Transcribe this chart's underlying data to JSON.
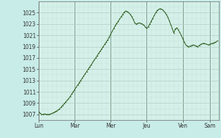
{
  "background_color": "#c8ece8",
  "plot_bg_color": "#d4f0e8",
  "line_color": "#2a5a1a",
  "marker_color": "#2a5a1a",
  "ylim": [
    1006,
    1027
  ],
  "yticks": [
    1007,
    1009,
    1011,
    1013,
    1015,
    1017,
    1019,
    1021,
    1023,
    1025
  ],
  "xlabel_days": [
    "Lun",
    "Mar",
    "Mer",
    "Jeu",
    "Ven",
    "Sam"
  ],
  "day_positions": [
    0,
    24,
    48,
    72,
    96,
    114
  ],
  "xlim": [
    0,
    120
  ],
  "grid_major_color": "#b0ccc4",
  "grid_minor_color": "#c4ddd6",
  "day_line_color": "#7a9a8a",
  "x_values": [
    0,
    1,
    2,
    3,
    4,
    5,
    6,
    7,
    8,
    9,
    10,
    11,
    12,
    13,
    14,
    15,
    16,
    17,
    18,
    19,
    20,
    21,
    22,
    23,
    24,
    25,
    26,
    27,
    28,
    29,
    30,
    31,
    32,
    33,
    34,
    35,
    36,
    37,
    38,
    39,
    40,
    41,
    42,
    43,
    44,
    45,
    46,
    47,
    48,
    49,
    50,
    51,
    52,
    53,
    54,
    55,
    56,
    57,
    58,
    59,
    60,
    61,
    62,
    63,
    64,
    65,
    66,
    67,
    68,
    69,
    70,
    71,
    72,
    73,
    74,
    75,
    76,
    77,
    78,
    79,
    80,
    81,
    82,
    83,
    84,
    85,
    86,
    87,
    88,
    89,
    90,
    91,
    92,
    93,
    94,
    95,
    96,
    97,
    98,
    99,
    100,
    101,
    102,
    103,
    104,
    105,
    106,
    107,
    108,
    109,
    110,
    111,
    112,
    113,
    114,
    115,
    116,
    117,
    118,
    119
  ],
  "y_values": [
    1007.5,
    1007.2,
    1007.0,
    1007.0,
    1007.1,
    1007.0,
    1007.0,
    1007.0,
    1007.1,
    1007.2,
    1007.3,
    1007.5,
    1007.6,
    1007.8,
    1008.0,
    1008.3,
    1008.6,
    1008.9,
    1009.2,
    1009.5,
    1009.8,
    1010.2,
    1010.6,
    1011.0,
    1011.4,
    1011.8,
    1012.2,
    1012.6,
    1013.0,
    1013.4,
    1013.8,
    1014.2,
    1014.6,
    1015.0,
    1015.4,
    1015.8,
    1016.2,
    1016.6,
    1017.0,
    1017.4,
    1017.8,
    1018.2,
    1018.6,
    1019.0,
    1019.4,
    1019.8,
    1020.2,
    1020.7,
    1021.2,
    1021.7,
    1022.2,
    1022.7,
    1023.1,
    1023.5,
    1023.9,
    1024.3,
    1024.7,
    1025.1,
    1025.3,
    1025.2,
    1025.0,
    1024.7,
    1024.3,
    1023.8,
    1023.2,
    1023.0,
    1023.1,
    1023.2,
    1023.1,
    1023.0,
    1022.8,
    1022.5,
    1022.2,
    1022.5,
    1023.0,
    1023.5,
    1024.0,
    1024.5,
    1025.0,
    1025.4,
    1025.6,
    1025.7,
    1025.6,
    1025.4,
    1025.1,
    1024.7,
    1024.2,
    1023.6,
    1022.9,
    1022.2,
    1021.4,
    1022.1,
    1022.3,
    1022.0,
    1021.5,
    1021.0,
    1020.4,
    1019.8,
    1019.3,
    1019.1,
    1019.0,
    1019.1,
    1019.2,
    1019.3,
    1019.2,
    1019.1,
    1019.0,
    1019.2,
    1019.4,
    1019.5,
    1019.6,
    1019.5,
    1019.4,
    1019.3,
    1019.4,
    1019.5,
    1019.6,
    1019.7,
    1019.8,
    1020.0
  ]
}
